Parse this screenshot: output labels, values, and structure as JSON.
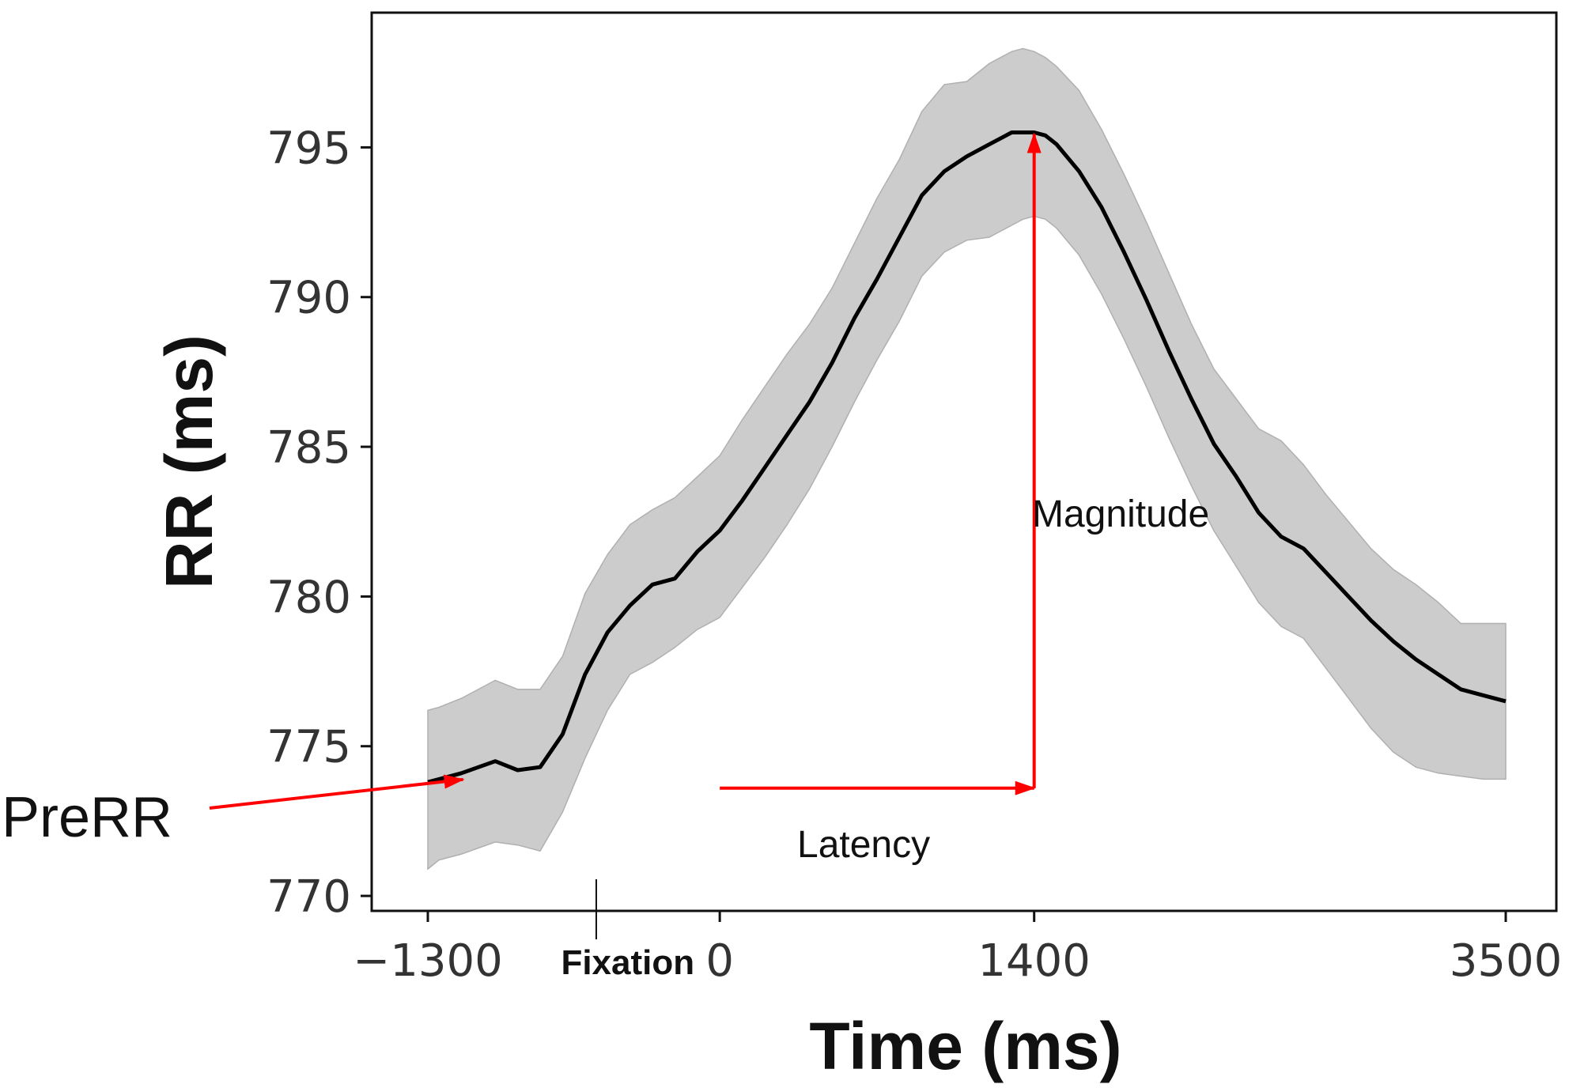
{
  "chart_data": {
    "type": "line",
    "title": "",
    "xlabel": "Time (ms)",
    "ylabel": "RR (ms)",
    "xlim": [
      -1300,
      3500
    ],
    "ylim": [
      769.5,
      799.5
    ],
    "xticks": [
      -1300,
      0,
      1400,
      3500
    ],
    "xtick_labels": [
      "−1300",
      "0",
      "1400",
      "3500"
    ],
    "yticks": [
      770,
      775,
      780,
      785,
      790,
      795
    ],
    "ytick_labels": [
      "770",
      "775",
      "780",
      "785",
      "790",
      "795"
    ],
    "grid": false,
    "colors": {
      "line": "#000000",
      "band": "#cccccc",
      "annotation": "#ff0000"
    },
    "series": [
      {
        "x": [
          -1300,
          -1250,
          -1150,
          -1000,
          -900,
          -800,
          -700,
          -600,
          -500,
          -400,
          -300,
          -200,
          -100,
          0,
          100,
          200,
          300,
          400,
          500,
          600,
          700,
          800,
          900,
          1000,
          1100,
          1200,
          1300,
          1350,
          1400,
          1450,
          1500,
          1600,
          1700,
          1800,
          1900,
          2000,
          2100,
          2200,
          2300,
          2400,
          2500,
          2600,
          2700,
          2800,
          2900,
          3000,
          3100,
          3200,
          3300,
          3400,
          3500
        ],
        "y": [
          773.8,
          773.9,
          774.1,
          774.5,
          774.2,
          774.3,
          775.4,
          777.4,
          778.8,
          779.7,
          780.4,
          780.6,
          781.5,
          782.2,
          783.2,
          784.3,
          785.4,
          786.5,
          787.8,
          789.3,
          790.6,
          792.0,
          793.4,
          794.2,
          794.7,
          795.1,
          795.5,
          795.5,
          795.5,
          795.4,
          795.1,
          794.2,
          793.0,
          791.5,
          789.9,
          788.2,
          786.6,
          785.1,
          784.0,
          782.8,
          782.0,
          781.6,
          780.8,
          780.0,
          779.2,
          778.5,
          777.9,
          777.4,
          776.9,
          776.7,
          776.5
        ],
        "lower": [
          770.9,
          771.2,
          771.4,
          771.8,
          771.7,
          771.5,
          772.8,
          774.6,
          776.2,
          777.4,
          777.8,
          778.3,
          778.9,
          779.3,
          780.3,
          781.3,
          782.4,
          783.6,
          785.0,
          786.5,
          787.9,
          789.2,
          790.7,
          791.5,
          791.9,
          792.0,
          792.4,
          792.6,
          792.7,
          792.6,
          792.3,
          791.4,
          790.1,
          788.6,
          787.0,
          785.3,
          783.7,
          782.2,
          781.0,
          779.8,
          779.0,
          778.6,
          777.6,
          776.6,
          775.6,
          774.8,
          774.3,
          774.1,
          774.0,
          773.9,
          773.9
        ],
        "upper": [
          776.2,
          776.3,
          776.6,
          777.2,
          776.9,
          776.9,
          778.0,
          780.1,
          781.4,
          782.4,
          782.9,
          783.3,
          784.0,
          784.7,
          785.9,
          787.0,
          788.1,
          789.1,
          790.3,
          791.8,
          793.3,
          794.6,
          796.2,
          797.1,
          797.2,
          797.8,
          798.2,
          798.3,
          798.2,
          798.0,
          797.7,
          796.9,
          795.6,
          794.1,
          792.5,
          790.8,
          789.1,
          787.6,
          786.6,
          785.6,
          785.2,
          784.4,
          783.4,
          782.5,
          781.6,
          780.9,
          780.4,
          779.8,
          779.1,
          779.1,
          779.1
        ]
      }
    ],
    "annotations": {
      "prerr_label": "PreRR",
      "fixation_label": "Fixation",
      "magnitude_label": "Magnitude",
      "latency_label": "Latency",
      "prerr_arrow_target": {
        "x": -1150,
        "y": 774.1
      },
      "fixation_time": -550,
      "peak": {
        "x": 1400,
        "y": 795.5
      },
      "latency_baseline_y": 773.6
    }
  }
}
